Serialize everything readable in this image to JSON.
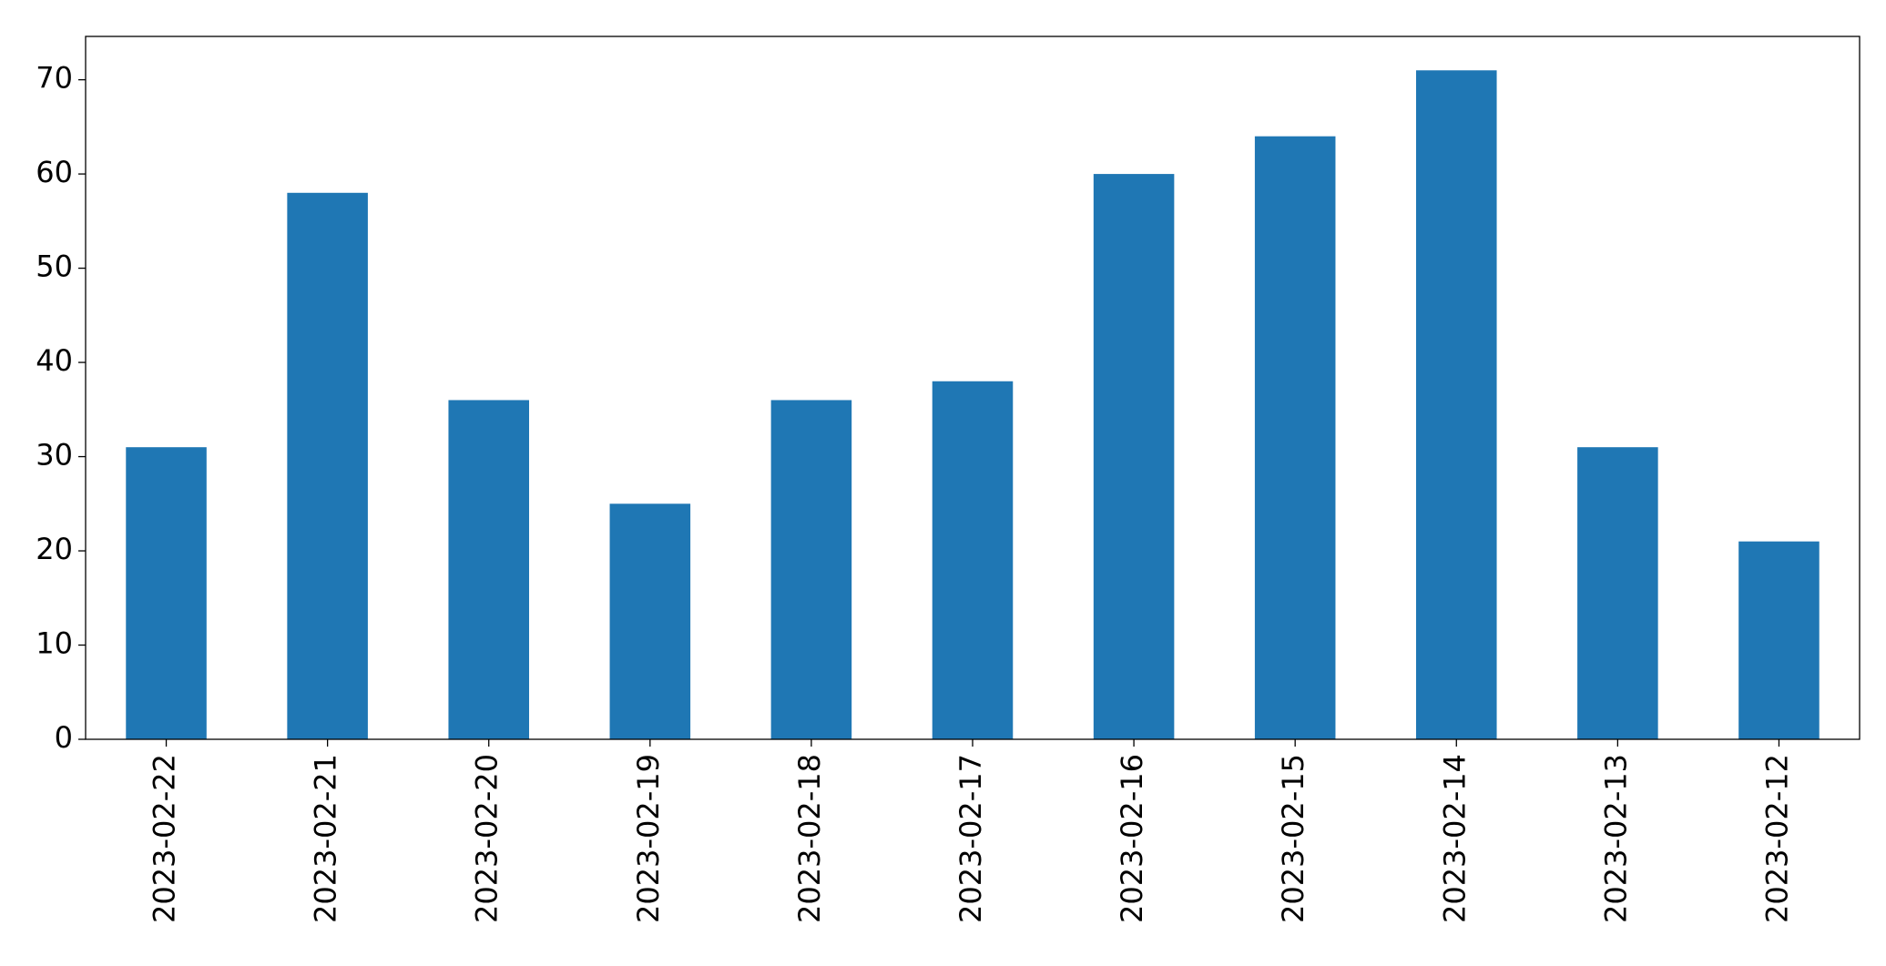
{
  "chart_data": {
    "type": "bar",
    "categories": [
      "2023-02-22",
      "2023-02-21",
      "2023-02-20",
      "2023-02-19",
      "2023-02-18",
      "2023-02-17",
      "2023-02-16",
      "2023-02-15",
      "2023-02-14",
      "2023-02-13",
      "2023-02-12"
    ],
    "values": [
      31,
      58,
      36,
      25,
      36,
      38,
      60,
      64,
      71,
      31,
      21
    ],
    "color": "#1f77b4",
    "ylim": [
      0,
      74.6
    ],
    "yticks": [
      0,
      10,
      20,
      30,
      40,
      50,
      60,
      70
    ],
    "grid": false
  }
}
